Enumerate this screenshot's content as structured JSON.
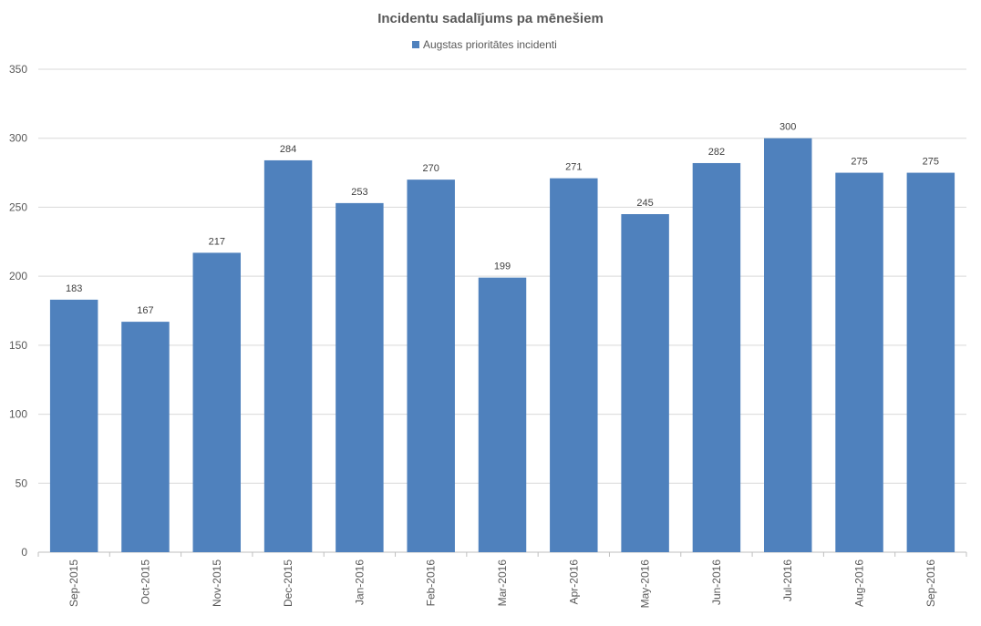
{
  "chart_data": {
    "type": "bar",
    "title": "Incidentu sadalījums pa mēnešiem",
    "legend": {
      "position": "top",
      "entries": [
        "Augstas prioritātes incidenti"
      ]
    },
    "categories": [
      "Sep-2015",
      "Oct-2015",
      "Nov-2015",
      "Dec-2015",
      "Jan-2016",
      "Feb-2016",
      "Mar-2016",
      "Apr-2016",
      "May-2016",
      "Jun-2016",
      "Jul-2016",
      "Aug-2016",
      "Sep-2016"
    ],
    "series": [
      {
        "name": "Augstas prioritātes incidenti",
        "color": "#4f81bd",
        "values": [
          183,
          167,
          217,
          284,
          253,
          270,
          199,
          271,
          245,
          282,
          300,
          275,
          275
        ]
      }
    ],
    "ylim": [
      0,
      350
    ],
    "yticks": [
      0,
      50,
      100,
      150,
      200,
      250,
      300,
      350
    ],
    "grid": true,
    "data_labels": true
  }
}
